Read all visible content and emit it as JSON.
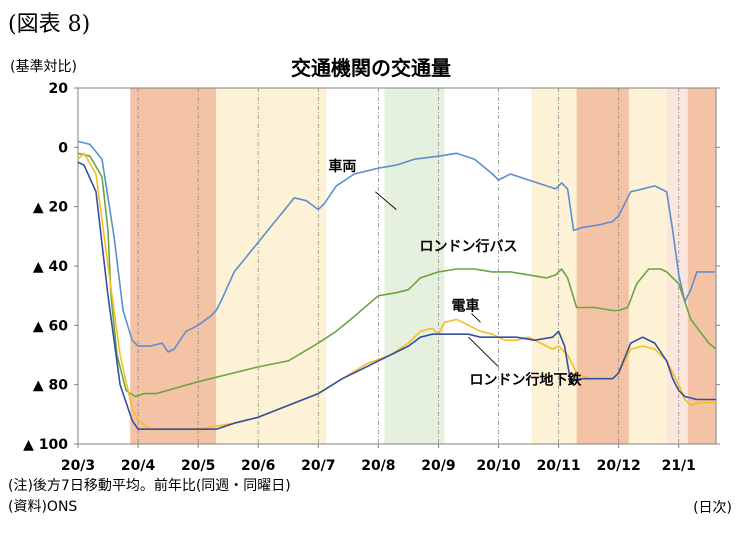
{
  "figure_label": "(図表 8)",
  "unit_label": "(基準対比)",
  "x_unit_label": "(日次)",
  "notes": [
    "(注)後方7日移動平均。前年比(同週・同曜日)",
    "(資料)ONS"
  ],
  "colors": {
    "band_orange": "#f4c2a4",
    "band_light_yellow": "#fdf2d6",
    "band_light_green": "#e6f0de",
    "band_light_pink": "#fbe6dc",
    "series_car": "#5b8fcd",
    "series_bus": "#6aa545",
    "series_train": "#f8bc24",
    "series_underground": "#34509c"
  },
  "chart_data": {
    "type": "line",
    "title": "交通機関の交通量",
    "y_tick_labels": [
      "20",
      "0",
      "▲ 20",
      "▲ 40",
      "▲ 60",
      "▲ 80",
      "▲ 100"
    ],
    "y_ticks": [
      20,
      0,
      -20,
      -40,
      -60,
      -80,
      -100
    ],
    "ylim": [
      -100,
      20
    ],
    "x_tick_labels": [
      "20/3",
      "20/4",
      "20/5",
      "20/6",
      "20/7",
      "20/8",
      "20/9",
      "20/10",
      "20/11",
      "20/12",
      "21/1"
    ],
    "x_range_months": [
      0,
      10.62
    ],
    "grid": "vertical dashed at month starts",
    "bands": [
      {
        "start": 0.87,
        "end": 2.3,
        "color": "band_orange"
      },
      {
        "start": 2.3,
        "end": 4.13,
        "color": "band_light_yellow"
      },
      {
        "start": 5.1,
        "end": 6.1,
        "color": "band_light_green"
      },
      {
        "start": 7.55,
        "end": 8.3,
        "color": "band_light_yellow"
      },
      {
        "start": 8.3,
        "end": 9.17,
        "color": "band_orange"
      },
      {
        "start": 9.17,
        "end": 9.8,
        "color": "band_light_yellow"
      },
      {
        "start": 9.8,
        "end": 10.15,
        "color": "band_light_pink"
      },
      {
        "start": 10.15,
        "end": 10.62,
        "color": "band_orange"
      }
    ],
    "series": [
      {
        "name": "車両",
        "color": "series_car",
        "x": [
          0,
          0.2,
          0.4,
          0.6,
          0.75,
          0.9,
          1.0,
          1.2,
          1.4,
          1.5,
          1.6,
          1.8,
          2.0,
          2.2,
          2.3,
          2.4,
          2.6,
          2.8,
          3.0,
          3.2,
          3.4,
          3.6,
          3.8,
          4.0,
          4.1,
          4.3,
          4.6,
          5.0,
          5.3,
          5.6,
          6.0,
          6.3,
          6.6,
          6.9,
          7.0,
          7.2,
          7.5,
          7.8,
          7.95,
          8.05,
          8.15,
          8.25,
          8.4,
          8.7,
          8.9,
          9.0,
          9.2,
          9.4,
          9.6,
          9.8,
          9.9,
          10.0,
          10.1,
          10.2,
          10.3,
          10.45,
          10.6
        ],
        "values": [
          2,
          1,
          -4,
          -30,
          -55,
          -65,
          -67,
          -67,
          -66,
          -69,
          -68,
          -62,
          -60,
          -57,
          -55,
          -51,
          -42,
          -37,
          -32,
          -27,
          -22,
          -17,
          -18,
          -21,
          -19,
          -13,
          -9,
          -7,
          -6,
          -4,
          -3,
          -2,
          -4,
          -9,
          -11,
          -9,
          -11,
          -13,
          -14,
          -12,
          -14,
          -28,
          -27,
          -26,
          -25,
          -23,
          -15,
          -14,
          -13,
          -15,
          -28,
          -43,
          -52,
          -48,
          -42,
          -42,
          -42
        ]
      },
      {
        "name": "ロンドン行バス",
        "color": "series_bus",
        "x": [
          0,
          0.2,
          0.4,
          0.5,
          0.55,
          0.65,
          0.8,
          0.95,
          1.1,
          1.3,
          2.0,
          3.0,
          3.5,
          4.0,
          4.3,
          4.6,
          5.0,
          5.3,
          5.5,
          5.7,
          6.0,
          6.3,
          6.6,
          6.9,
          7.2,
          7.5,
          7.8,
          7.95,
          8.05,
          8.15,
          8.3,
          8.6,
          8.9,
          9.0,
          9.15,
          9.3,
          9.5,
          9.7,
          9.8,
          10.0,
          10.1,
          10.2,
          10.35,
          10.5,
          10.62
        ],
        "values": [
          -2,
          -3,
          -10,
          -28,
          -50,
          -70,
          -82,
          -84,
          -83,
          -83,
          -79,
          -74,
          -72,
          -66,
          -62,
          -57,
          -50,
          -49,
          -48,
          -44,
          -42,
          -41,
          -41,
          -42,
          -42,
          -43,
          -44,
          -43,
          -41,
          -44,
          -54,
          -54,
          -55,
          -55,
          -54,
          -46,
          -41,
          -41,
          -42,
          -46,
          -52,
          -58,
          -62,
          -66,
          -68
        ]
      },
      {
        "name": "電車",
        "color": "series_train",
        "x": [
          0,
          0.1,
          0.3,
          0.5,
          0.7,
          0.9,
          1.0,
          1.2,
          1.5,
          1.8,
          2.0,
          2.3,
          2.6,
          3.0,
          3.5,
          4.0,
          4.4,
          4.8,
          5.2,
          5.5,
          5.7,
          5.9,
          6.0,
          6.1,
          6.3,
          6.5,
          6.7,
          6.9,
          7.1,
          7.3,
          7.5,
          7.7,
          7.9,
          8.0,
          8.15,
          8.3,
          8.5,
          8.7,
          8.9,
          9.0,
          9.2,
          9.4,
          9.6,
          9.8,
          9.9,
          10.0,
          10.1,
          10.2,
          10.35,
          10.5,
          10.62
        ],
        "values": [
          -4,
          -2,
          -9,
          -40,
          -70,
          -88,
          -92,
          -95,
          -95,
          -95,
          -95,
          -94,
          -93,
          -91,
          -87,
          -83,
          -78,
          -73,
          -70,
          -66,
          -62,
          -61,
          -63,
          -59,
          -58,
          -60,
          -62,
          -63,
          -65,
          -65,
          -64,
          -66,
          -68,
          -67,
          -70,
          -76,
          -78,
          -78,
          -78,
          -76,
          -68,
          -67,
          -68,
          -72,
          -76,
          -80,
          -85,
          -87,
          -86,
          -86,
          -86
        ]
      },
      {
        "name": "ロンドン行地下鉄",
        "color": "series_underground",
        "x": [
          0,
          0.1,
          0.3,
          0.5,
          0.7,
          0.9,
          1.0,
          1.3,
          1.6,
          2.0,
          2.3,
          2.6,
          3.0,
          3.5,
          4.0,
          4.4,
          4.8,
          5.2,
          5.5,
          5.7,
          5.9,
          6.2,
          6.5,
          6.7,
          6.9,
          7.1,
          7.3,
          7.6,
          7.9,
          8.0,
          8.1,
          8.2,
          8.4,
          8.7,
          8.9,
          9.0,
          9.2,
          9.4,
          9.6,
          9.8,
          9.9,
          10.0,
          10.1,
          10.3,
          10.5,
          10.62
        ],
        "values": [
          -5,
          -6,
          -15,
          -50,
          -80,
          -92,
          -95,
          -95,
          -95,
          -95,
          -95,
          -93,
          -91,
          -87,
          -83,
          -78,
          -74,
          -70,
          -67,
          -64,
          -63,
          -63,
          -63,
          -64,
          -64,
          -64,
          -64,
          -65,
          -64,
          -62,
          -67,
          -79,
          -78,
          -78,
          -78,
          -76,
          -66,
          -64,
          -66,
          -72,
          -78,
          -82,
          -84,
          -85,
          -85,
          -85
        ]
      }
    ],
    "annotations": [
      {
        "text": "車両",
        "series": "車両"
      },
      {
        "text": "ロンドン行バス",
        "series": "ロンドン行バス"
      },
      {
        "text": "電車",
        "series": "電車"
      },
      {
        "text": "ロンドン行地下鉄",
        "series": "ロンドン行地下鉄"
      }
    ]
  }
}
